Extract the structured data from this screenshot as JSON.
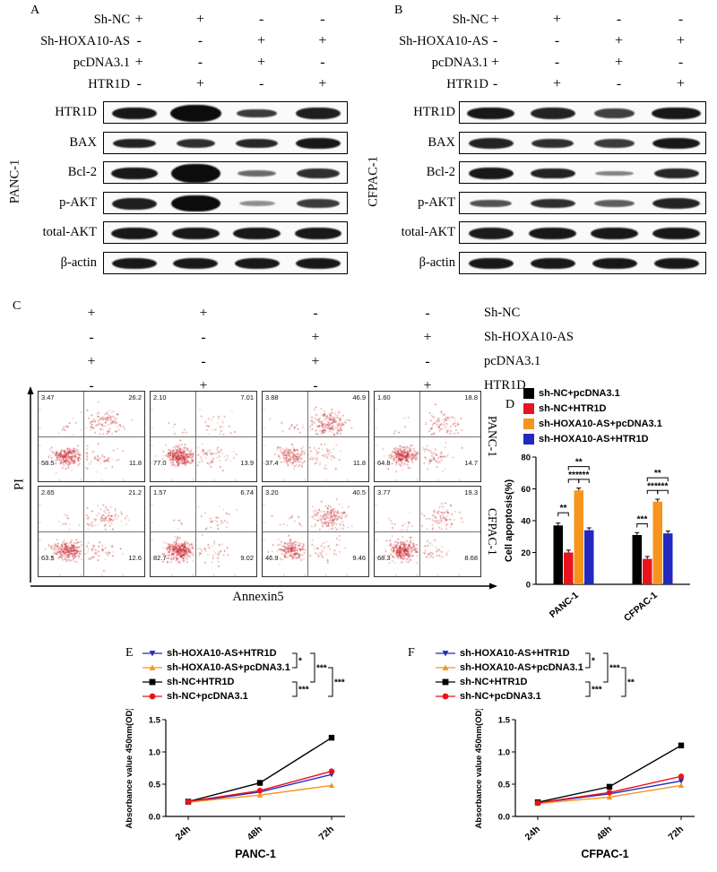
{
  "colors": {
    "black": "#000000",
    "red": "#e8131c",
    "orange": "#f7941d",
    "blue": "#2228c0",
    "scatter_dot": "#c42127"
  },
  "western": {
    "panels": [
      {
        "id": "A",
        "cell_line": "PANC-1",
        "conditions": [
          {
            "name": "Sh-NC",
            "values": [
              "+",
              "+",
              "-",
              "-"
            ]
          },
          {
            "name": "Sh-HOXA10-AS",
            "values": [
              "-",
              "-",
              "+",
              "+"
            ]
          },
          {
            "name": "pcDNA3.1",
            "values": [
              "+",
              "-",
              "+",
              "-"
            ]
          },
          {
            "name": "HTR1D",
            "values": [
              "-",
              "+",
              "-",
              "+"
            ]
          }
        ],
        "blots": [
          {
            "name": "HTR1D",
            "bands": [
              [
                0.95,
                1.0,
                1.0
              ],
              [
                1.0,
                1.15,
                1.4
              ],
              [
                0.8,
                0.9,
                0.75
              ],
              [
                0.92,
                1.0,
                1.0
              ]
            ]
          },
          {
            "name": "BAX",
            "bands": [
              [
                0.9,
                0.95,
                0.8
              ],
              [
                0.85,
                0.85,
                0.7
              ],
              [
                0.88,
                0.95,
                0.8
              ],
              [
                0.95,
                1.0,
                0.95
              ]
            ]
          },
          {
            "name": "Bcl-2",
            "bands": [
              [
                0.95,
                1.05,
                1.05
              ],
              [
                1.0,
                1.1,
                1.55
              ],
              [
                0.6,
                0.85,
                0.5
              ],
              [
                0.85,
                0.95,
                0.8
              ]
            ]
          },
          {
            "name": "p-AKT",
            "bands": [
              [
                0.92,
                1.0,
                1.0
              ],
              [
                1.0,
                1.1,
                1.35
              ],
              [
                0.45,
                0.8,
                0.4
              ],
              [
                0.8,
                0.95,
                0.75
              ]
            ]
          },
          {
            "name": "total-AKT",
            "bands": [
              [
                0.95,
                1.05,
                1.0
              ],
              [
                0.95,
                1.05,
                1.0
              ],
              [
                0.95,
                1.05,
                1.0
              ],
              [
                0.95,
                1.05,
                1.0
              ]
            ]
          },
          {
            "name": "β-actin",
            "bands": [
              [
                0.95,
                1.0,
                0.9
              ],
              [
                0.95,
                1.0,
                0.9
              ],
              [
                0.95,
                1.0,
                0.9
              ],
              [
                0.95,
                1.0,
                0.9
              ]
            ]
          }
        ]
      },
      {
        "id": "B",
        "cell_line": "CFPAC-1",
        "conditions": [
          {
            "name": "Sh-NC",
            "values": [
              "+",
              "+",
              "-",
              "-"
            ]
          },
          {
            "name": "Sh-HOXA10-AS",
            "values": [
              "-",
              "-",
              "+",
              "+"
            ]
          },
          {
            "name": "pcDNA3.1",
            "values": [
              "+",
              "-",
              "+",
              "-"
            ]
          },
          {
            "name": "HTR1D",
            "values": [
              "-",
              "+",
              "-",
              "+"
            ]
          }
        ],
        "blots": [
          {
            "name": "HTR1D",
            "bands": [
              [
                0.95,
                1.05,
                1.0
              ],
              [
                0.9,
                1.0,
                0.95
              ],
              [
                0.78,
                0.9,
                0.8
              ],
              [
                0.95,
                1.1,
                1.05
              ]
            ]
          },
          {
            "name": "BAX",
            "bands": [
              [
                0.9,
                1.0,
                0.85
              ],
              [
                0.85,
                0.95,
                0.8
              ],
              [
                0.8,
                0.9,
                0.75
              ],
              [
                0.95,
                1.05,
                0.9
              ]
            ]
          },
          {
            "name": "Bcl-2",
            "bands": [
              [
                0.95,
                1.0,
                1.0
              ],
              [
                0.9,
                1.0,
                0.9
              ],
              [
                0.5,
                0.85,
                0.45
              ],
              [
                0.88,
                1.0,
                0.85
              ]
            ]
          },
          {
            "name": "p-AKT",
            "bands": [
              [
                0.7,
                0.95,
                0.6
              ],
              [
                0.85,
                1.0,
                0.75
              ],
              [
                0.65,
                0.9,
                0.55
              ],
              [
                0.9,
                1.05,
                0.85
              ]
            ]
          },
          {
            "name": "total-AKT",
            "bands": [
              [
                0.93,
                1.0,
                0.95
              ],
              [
                0.95,
                1.05,
                1.0
              ],
              [
                0.95,
                1.05,
                1.0
              ],
              [
                0.95,
                1.05,
                1.0
              ]
            ]
          },
          {
            "name": "β-actin",
            "bands": [
              [
                0.95,
                1.0,
                0.95
              ],
              [
                0.95,
                1.0,
                0.95
              ],
              [
                0.95,
                1.0,
                0.95
              ],
              [
                0.95,
                1.0,
                0.95
              ]
            ]
          }
        ]
      }
    ]
  },
  "flow": {
    "id": "C",
    "x_axis_label": "Annexin5",
    "y_axis_label": "PI",
    "conditions": [
      {
        "name": "Sh-NC",
        "values": [
          "+",
          "+",
          "-",
          "-"
        ]
      },
      {
        "name": "Sh-HOXA10-AS",
        "values": [
          "-",
          "-",
          "+",
          "+"
        ]
      },
      {
        "name": "pcDNA3.1",
        "values": [
          "+",
          "-",
          "+",
          "-"
        ]
      },
      {
        "name": "HTR1D",
        "values": [
          "-",
          "+",
          "-",
          "+"
        ]
      }
    ],
    "rows": [
      {
        "cell_line": "PANC-1",
        "plots": [
          {
            "ul": "3.47",
            "ur": "26.2",
            "ll": "58.5",
            "lr": "11.8"
          },
          {
            "ul": "2.10",
            "ur": "7.01",
            "ll": "77.0",
            "lr": "13.9"
          },
          {
            "ul": "3.88",
            "ur": "46.9",
            "ll": "37.4",
            "lr": "11.8"
          },
          {
            "ul": "1.60",
            "ur": "18.8",
            "ll": "64.8",
            "lr": "14.7"
          }
        ]
      },
      {
        "cell_line": "CFPAC-1",
        "plots": [
          {
            "ul": "2.65",
            "ur": "21.2",
            "ll": "63.5",
            "lr": "12.6"
          },
          {
            "ul": "1.57",
            "ur": "6.74",
            "ll": "82.7",
            "lr": "9.02"
          },
          {
            "ul": "3.20",
            "ur": "40.5",
            "ll": "46.9",
            "lr": "9.46"
          },
          {
            "ul": "3.77",
            "ur": "19.3",
            "ll": "68.3",
            "lr": "8.68"
          }
        ]
      }
    ]
  },
  "chart_data": [
    {
      "id": "D",
      "type": "bar",
      "ylabel": "Cell apoptosis(%)",
      "ylim": [
        0,
        80
      ],
      "yticks": [
        0,
        20,
        40,
        60,
        80
      ],
      "categories": [
        "PANC-1",
        "CFPAC-1"
      ],
      "legend_position": "top",
      "error": 1.5,
      "series": [
        {
          "name": "sh-NC+pcDNA3.1",
          "color": "#000000",
          "values": [
            37,
            31
          ]
        },
        {
          "name": "sh-NC+HTR1D",
          "color": "#e8131c",
          "values": [
            20,
            16
          ]
        },
        {
          "name": "sh-HOXA10-AS+pcDNA3.1",
          "color": "#f7941d",
          "values": [
            59,
            52
          ]
        },
        {
          "name": "sh-HOXA10-AS+HTR1D",
          "color": "#2228c0",
          "values": [
            34,
            32
          ]
        }
      ],
      "significance": [
        {
          "group": 0,
          "from": 0,
          "to": 1,
          "label": "**",
          "y": 45
        },
        {
          "group": 0,
          "from": 1,
          "to": 2,
          "label": "***",
          "y": 66
        },
        {
          "group": 0,
          "from": 2,
          "to": 3,
          "label": "***",
          "y": 66
        },
        {
          "group": 0,
          "from": 1,
          "to": 3,
          "label": "**",
          "y": 74
        },
        {
          "group": 1,
          "from": 0,
          "to": 1,
          "label": "***",
          "y": 38
        },
        {
          "group": 1,
          "from": 1,
          "to": 2,
          "label": "***",
          "y": 59
        },
        {
          "group": 1,
          "from": 2,
          "to": 3,
          "label": "***",
          "y": 59
        },
        {
          "group": 1,
          "from": 1,
          "to": 3,
          "label": "**",
          "y": 67
        }
      ]
    },
    {
      "id": "E",
      "type": "line",
      "xlabel": "PANC-1",
      "ylabel": "Absorbance value 450nm(OD)",
      "x": [
        "24h",
        "48h",
        "72h"
      ],
      "ylim": [
        0,
        1.5
      ],
      "yticks": [
        "0.0",
        "0.5",
        "1.0",
        "1.5"
      ],
      "series": [
        {
          "name": "sh-HOXA10-AS+HTR1D",
          "color": "#2228c0",
          "marker": "triangle-down",
          "values": [
            0.22,
            0.38,
            0.65
          ]
        },
        {
          "name": "sh-HOXA10-AS+pcDNA3.1",
          "color": "#f7941d",
          "marker": "triangle-up",
          "values": [
            0.22,
            0.33,
            0.48
          ]
        },
        {
          "name": "sh-NC+HTR1D",
          "color": "#000000",
          "marker": "square",
          "values": [
            0.23,
            0.52,
            1.22
          ]
        },
        {
          "name": "sh-NC+pcDNA3.1",
          "color": "#e8131c",
          "marker": "circle",
          "values": [
            0.23,
            0.4,
            0.7
          ]
        }
      ],
      "legend_significance": [
        {
          "rows": [
            0,
            1
          ],
          "label": "*",
          "depth": 0
        },
        {
          "rows": [
            0,
            2
          ],
          "label": "***",
          "depth": 1
        },
        {
          "rows": [
            2,
            3
          ],
          "label": "***",
          "depth": 0
        },
        {
          "rows": [
            1,
            3
          ],
          "label": "***",
          "depth": 2
        }
      ]
    },
    {
      "id": "F",
      "type": "line",
      "xlabel": "CFPAC-1",
      "ylabel": "Absorbance value 450nm(OD)",
      "x": [
        "24h",
        "48h",
        "72h"
      ],
      "ylim": [
        0,
        1.5
      ],
      "yticks": [
        "0.0",
        "0.5",
        "1.0",
        "1.5"
      ],
      "series": [
        {
          "name": "sh-HOXA10-AS+HTR1D",
          "color": "#2228c0",
          "marker": "triangle-down",
          "values": [
            0.21,
            0.35,
            0.55
          ]
        },
        {
          "name": "sh-HOXA10-AS+pcDNA3.1",
          "color": "#f7941d",
          "marker": "triangle-up",
          "values": [
            0.2,
            0.3,
            0.48
          ]
        },
        {
          "name": "sh-NC+HTR1D",
          "color": "#000000",
          "marker": "square",
          "values": [
            0.22,
            0.46,
            1.1
          ]
        },
        {
          "name": "sh-NC+pcDNA3.1",
          "color": "#e8131c",
          "marker": "circle",
          "values": [
            0.21,
            0.37,
            0.62
          ]
        }
      ],
      "legend_significance": [
        {
          "rows": [
            0,
            1
          ],
          "label": "*",
          "depth": 0
        },
        {
          "rows": [
            0,
            2
          ],
          "label": "***",
          "depth": 1
        },
        {
          "rows": [
            2,
            3
          ],
          "label": "***",
          "depth": 0
        },
        {
          "rows": [
            1,
            3
          ],
          "label": "**",
          "depth": 2
        }
      ]
    }
  ]
}
